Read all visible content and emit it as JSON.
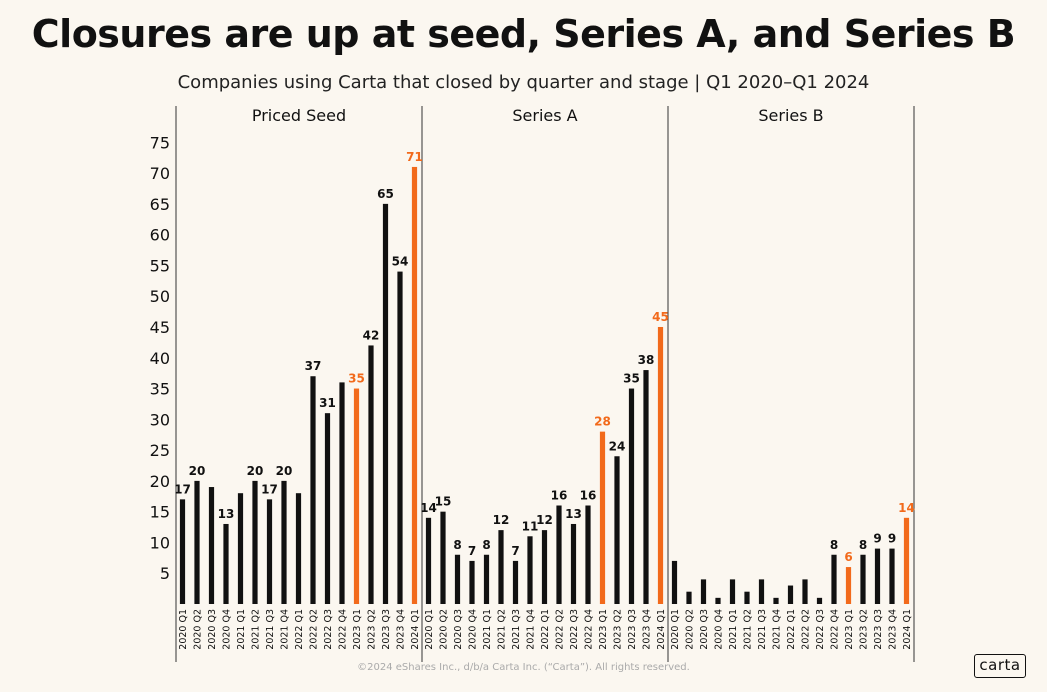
{
  "title": "Closures are up at seed, Series A, and Series B",
  "subtitle": "Companies using Carta that closed by quarter and stage | Q1 2020–Q1 2024",
  "footer": "©2024 eShares Inc., d/b/a Carta Inc. (“Carta”). All rights reserved.",
  "logo_text": "carta",
  "colors": {
    "default_bar": "#111111",
    "highlight_bar": "#f26a1b"
  },
  "chart_data": {
    "type": "bar",
    "ylim": [
      0,
      77
    ],
    "yticks": [
      5,
      10,
      15,
      20,
      25,
      30,
      35,
      40,
      45,
      50,
      55,
      60,
      65,
      70,
      75
    ],
    "grid": false,
    "categories": [
      "2020 Q1",
      "2020 Q2",
      "2020 Q3",
      "2020 Q4",
      "2021 Q1",
      "2021 Q2",
      "2021 Q3",
      "2021 Q4",
      "2022 Q1",
      "2022 Q2",
      "2022 Q3",
      "2022 Q4",
      "2023 Q1",
      "2023 Q2",
      "2023 Q3",
      "2023 Q4",
      "2024 Q1"
    ],
    "highlighted_categories": [
      "2023 Q1",
      "2024 Q1"
    ],
    "panels": [
      {
        "name": "Priced Seed",
        "values": [
          17,
          20,
          19,
          13,
          18,
          20,
          17,
          20,
          18,
          37,
          31,
          36,
          35,
          42,
          65,
          54,
          71
        ],
        "labels": [
          "17",
          "20",
          "",
          "13",
          "",
          "20",
          "17",
          "20",
          "",
          "37",
          "31",
          "",
          "35",
          "42",
          "65",
          "54",
          "71"
        ]
      },
      {
        "name": "Series A",
        "values": [
          14,
          15,
          8,
          7,
          8,
          12,
          7,
          11,
          12,
          16,
          13,
          16,
          28,
          24,
          35,
          38,
          45
        ],
        "labels": [
          "14",
          "15",
          "8",
          "7",
          "8",
          "12",
          "7",
          "11",
          "12",
          "16",
          "13",
          "16",
          "28",
          "24",
          "35",
          "38",
          "45"
        ]
      },
      {
        "name": "Series B",
        "values": [
          7,
          2,
          4,
          1,
          4,
          2,
          4,
          1,
          3,
          4,
          1,
          8,
          6,
          8,
          9,
          9,
          14
        ],
        "labels": [
          "",
          "",
          "",
          "",
          "",
          "",
          "",
          "",
          "",
          "",
          "",
          "8",
          "6",
          "8",
          "9",
          "9",
          "14"
        ]
      }
    ]
  }
}
